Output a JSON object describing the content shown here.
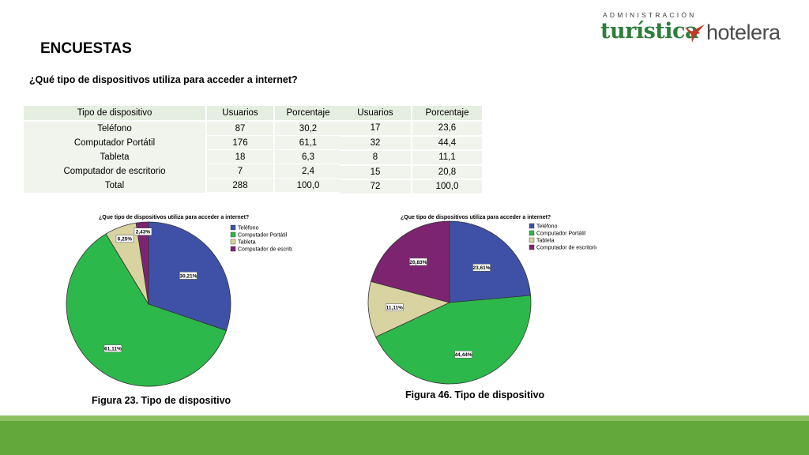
{
  "logo": {
    "top": "ADMINISTRACIÓN",
    "left": "turística",
    "right": "hotelera"
  },
  "title": "ENCUESTAS",
  "question": "¿Qué tipo de dispositivos utiliza para acceder a internet?",
  "table1": {
    "headers": [
      "Tipo de dispositivo",
      "Usuarios",
      "Porcentaje"
    ],
    "rows": [
      [
        "Teléfono",
        "87",
        "30,2"
      ],
      [
        "Computador Portátil",
        "176",
        "61,1"
      ],
      [
        "Tableta",
        "18",
        "6,3"
      ],
      [
        "Computador de escritorio",
        "7",
        "2,4"
      ],
      [
        "Total",
        "288",
        "100,0"
      ]
    ]
  },
  "table2": {
    "headers": [
      "Usuarios",
      "Porcentaje"
    ],
    "rows": [
      [
        "17",
        "23,6"
      ],
      [
        "32",
        "44,4"
      ],
      [
        "8",
        "11,1"
      ],
      [
        "15",
        "20,8"
      ],
      [
        "72",
        "100,0"
      ]
    ]
  },
  "chart_data": [
    {
      "type": "pie",
      "title": "¿Que tipo de dispositivos utiliza para acceder a internet?",
      "categories": [
        "Teléfono",
        "Computador Portátil",
        "Tableta",
        "Computador de escritorio"
      ],
      "values": [
        30.21,
        61.11,
        6.25,
        2.43
      ],
      "labels": [
        "30,21%",
        "61,11%",
        "6,25%",
        "2,43%"
      ],
      "colors": [
        "#3f51a6",
        "#2db84b",
        "#d8d3a0",
        "#7c2470"
      ],
      "legend": "right"
    },
    {
      "type": "pie",
      "title": "¿Que tipo de dispositivos utiliza para acceder a internet?",
      "categories": [
        "Teléfono",
        "Computador Portátil",
        "Tableta",
        "Computador de escritorio"
      ],
      "values": [
        23.61,
        44.44,
        11.11,
        20.83
      ],
      "labels": [
        "23,61%",
        "44,44%",
        "11,11%",
        "20,83%"
      ],
      "colors": [
        "#3f51a6",
        "#2db84b",
        "#d8d3a0",
        "#7c2470"
      ],
      "legend": "right"
    }
  ],
  "captions": [
    "Figura 23. Tipo de dispositivo",
    "Figura 46. Tipo de dispositivo"
  ]
}
